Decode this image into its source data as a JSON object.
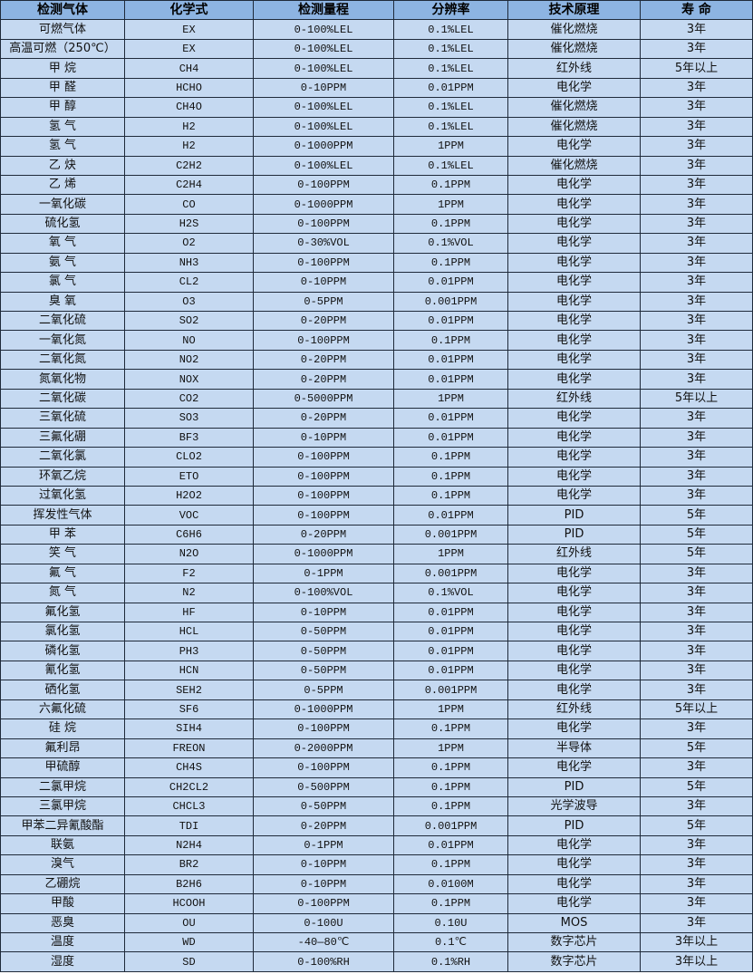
{
  "colors": {
    "header_bg": "#8db4e2",
    "row_bg": "#c5d9f1",
    "border": "#1f2a3a"
  },
  "table": {
    "headers": [
      "检测气体",
      "化学式",
      "检测量程",
      "分辨率",
      "技术原理",
      "寿 命"
    ],
    "rows": [
      [
        "可燃气体",
        "EX",
        "0-100%LEL",
        "0.1%LEL",
        "催化燃烧",
        "3年"
      ],
      [
        "高温可燃（250℃）",
        "EX",
        "0-100%LEL",
        "0.1%LEL",
        "催化燃烧",
        "3年"
      ],
      [
        "甲 烷",
        "CH4",
        "0-100%LEL",
        "0.1%LEL",
        "红外线",
        "5年以上"
      ],
      [
        "甲 醛",
        "HCHO",
        "0-10PPM",
        "0.01PPM",
        "电化学",
        "3年"
      ],
      [
        "甲 醇",
        "CH4O",
        "0-100%LEL",
        "0.1%LEL",
        "催化燃烧",
        "3年"
      ],
      [
        "氢 气",
        "H2",
        "0-100%LEL",
        "0.1%LEL",
        "催化燃烧",
        "3年"
      ],
      [
        "氢 气",
        "H2",
        "0-1000PPM",
        "1PPM",
        "电化学",
        "3年"
      ],
      [
        "乙 炔",
        "C2H2",
        "0-100%LEL",
        "0.1%LEL",
        "催化燃烧",
        "3年"
      ],
      [
        "乙 烯",
        "C2H4",
        "0-100PPM",
        "0.1PPM",
        "电化学",
        "3年"
      ],
      [
        "一氧化碳",
        "CO",
        "0-1000PPM",
        "1PPM",
        "电化学",
        "3年"
      ],
      [
        "硫化氢",
        "H2S",
        "0-100PPM",
        "0.1PPM",
        "电化学",
        "3年"
      ],
      [
        "氧 气",
        "O2",
        "0-30%VOL",
        "0.1%VOL",
        "电化学",
        "3年"
      ],
      [
        "氨 气",
        "NH3",
        "0-100PPM",
        "0.1PPM",
        "电化学",
        "3年"
      ],
      [
        "氯 气",
        "CL2",
        "0-10PPM",
        "0.01PPM",
        "电化学",
        "3年"
      ],
      [
        "臭 氧",
        "O3",
        "0-5PPM",
        "0.001PPM",
        "电化学",
        "3年"
      ],
      [
        "二氧化硫",
        "SO2",
        "0-20PPM",
        "0.01PPM",
        "电化学",
        "3年"
      ],
      [
        "一氧化氮",
        "NO",
        "0-100PPM",
        "0.1PPM",
        "电化学",
        "3年"
      ],
      [
        "二氧化氮",
        "NO2",
        "0-20PPM",
        "0.01PPM",
        "电化学",
        "3年"
      ],
      [
        "氮氧化物",
        "NOX",
        "0-20PPM",
        "0.01PPM",
        "电化学",
        "3年"
      ],
      [
        "二氧化碳",
        "CO2",
        "0-5000PPM",
        "1PPM",
        "红外线",
        "5年以上"
      ],
      [
        "三氧化硫",
        "SO3",
        "0-20PPM",
        "0.01PPM",
        "电化学",
        "3年"
      ],
      [
        "三氟化硼",
        "BF3",
        "0-10PPM",
        "0.01PPM",
        "电化学",
        "3年"
      ],
      [
        "二氧化氯",
        "CLO2",
        "0-100PPM",
        "0.1PPM",
        "电化学",
        "3年"
      ],
      [
        "环氧乙烷",
        "ETO",
        "0-100PPM",
        "0.1PPM",
        "电化学",
        "3年"
      ],
      [
        "过氧化氢",
        "H2O2",
        "0-100PPM",
        "0.1PPM",
        "电化学",
        "3年"
      ],
      [
        "挥发性气体",
        "VOC",
        "0-100PPM",
        "0.01PPM",
        "PID",
        "5年"
      ],
      [
        "甲 苯",
        "C6H6",
        "0-20PPM",
        "0.001PPM",
        "PID",
        "5年"
      ],
      [
        "笑 气",
        "N2O",
        "0-1000PPM",
        "1PPM",
        "红外线",
        "5年"
      ],
      [
        "氟 气",
        "F2",
        "0-1PPM",
        "0.001PPM",
        "电化学",
        "3年"
      ],
      [
        "氮 气",
        "N2",
        "0-100%VOL",
        "0.1%VOL",
        "电化学",
        "3年"
      ],
      [
        "氟化氢",
        "HF",
        "0-10PPM",
        "0.01PPM",
        "电化学",
        "3年"
      ],
      [
        "氯化氢",
        "HCL",
        "0-50PPM",
        "0.01PPM",
        "电化学",
        "3年"
      ],
      [
        "磷化氢",
        "PH3",
        "0-50PPM",
        "0.01PPM",
        "电化学",
        "3年"
      ],
      [
        "氰化氢",
        "HCN",
        "0-50PPM",
        "0.01PPM",
        "电化学",
        "3年"
      ],
      [
        "硒化氢",
        "SEH2",
        "0-5PPM",
        "0.001PPM",
        "电化学",
        "3年"
      ],
      [
        "六氟化硫",
        "SF6",
        "0-1000PPM",
        "1PPM",
        "红外线",
        "5年以上"
      ],
      [
        "硅 烷",
        "SIH4",
        "0-100PPM",
        "0.1PPM",
        "电化学",
        "3年"
      ],
      [
        "氟利昂",
        "FREON",
        "0-2000PPM",
        "1PPM",
        "半导体",
        "5年"
      ],
      [
        "甲硫醇",
        "CH4S",
        "0-100PPM",
        "0.1PPM",
        "电化学",
        "3年"
      ],
      [
        "二氯甲烷",
        "CH2CL2",
        "0-500PPM",
        "0.1PPM",
        "PID",
        "5年"
      ],
      [
        "三氯甲烷",
        "CHCL3",
        "0-50PPM",
        "0.1PPM",
        "光学波导",
        "3年"
      ],
      [
        "甲苯二异氰酸酯",
        "TDI",
        "0-20PPM",
        "0.001PPM",
        "PID",
        "5年"
      ],
      [
        "联氨",
        "N2H4",
        "0-1PPM",
        "0.01PPM",
        "电化学",
        "3年"
      ],
      [
        "溴气",
        "BR2",
        "0-10PPM",
        "0.1PPM",
        "电化学",
        "3年"
      ],
      [
        "乙硼烷",
        "B2H6",
        "0-10PPM",
        "0.0100M",
        "电化学",
        "3年"
      ],
      [
        "甲酸",
        "HCOOH",
        "0-100PPM",
        "0.1PPM",
        "电化学",
        "3年"
      ],
      [
        "恶臭",
        "OU",
        "0-100U",
        "0.10U",
        "MOS",
        "3年"
      ],
      [
        "温度",
        "WD",
        "-40—80℃",
        "0.1℃",
        "数字芯片",
        "3年以上"
      ],
      [
        "湿度",
        "SD",
        "0-100%RH",
        "0.1%RH",
        "数字芯片",
        "3年以上"
      ]
    ]
  }
}
